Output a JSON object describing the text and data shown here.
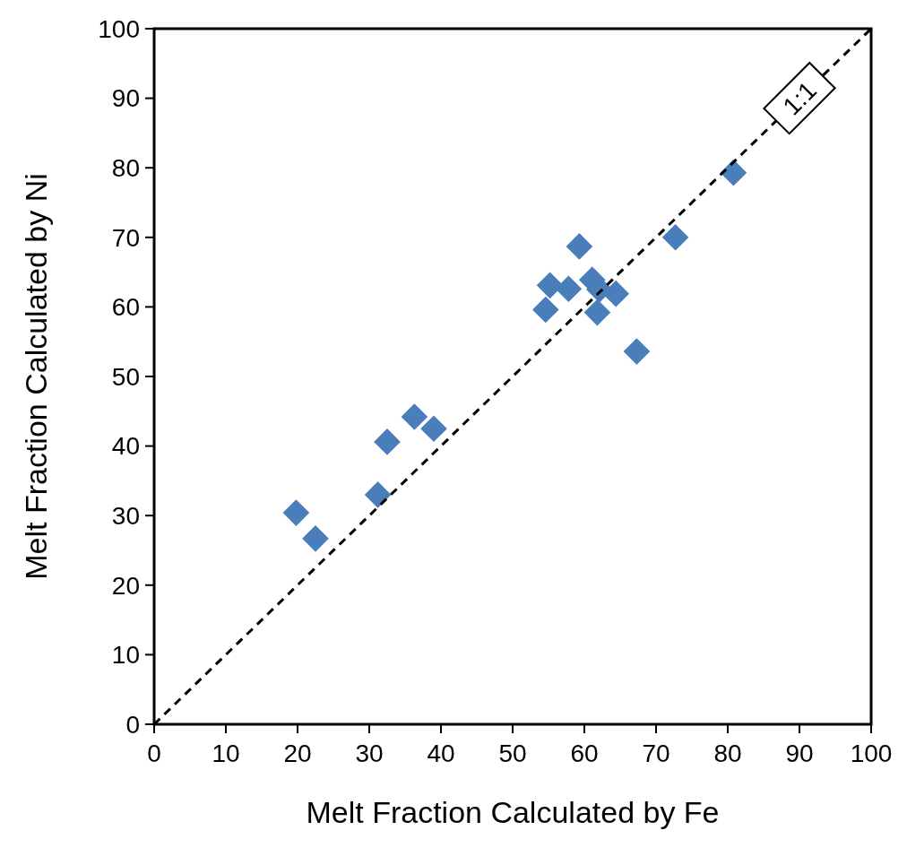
{
  "chart_data": {
    "type": "scatter",
    "xlabel": "Melt Fraction Calculated by Fe",
    "ylabel": "Melt Fraction Calculated by Ni",
    "xlim": [
      0,
      100
    ],
    "ylim": [
      0,
      100
    ],
    "xticks": [
      0,
      10,
      20,
      30,
      40,
      50,
      60,
      70,
      80,
      90,
      100
    ],
    "yticks": [
      0,
      10,
      20,
      30,
      40,
      50,
      60,
      70,
      80,
      90,
      100
    ],
    "grid": false,
    "series": [
      {
        "color": "#4a7ebb",
        "marker": "diamond",
        "x": [
          19.8,
          22.5,
          31.2,
          32.5,
          36.3,
          39.0,
          54.6,
          55.2,
          57.8,
          59.3,
          61.1,
          61.8,
          62.1,
          64.4,
          67.3,
          72.7,
          80.8
        ],
        "values": [
          30.4,
          26.7,
          33.0,
          40.6,
          44.2,
          42.5,
          59.6,
          63.1,
          62.6,
          68.7,
          63.9,
          59.2,
          62.5,
          61.9,
          53.6,
          70.0,
          79.3
        ]
      },
      {
        "type": "line",
        "color": "#000000",
        "line_style": "dashed",
        "marker": "none",
        "x": [
          0,
          100
        ],
        "values": [
          0,
          100
        ]
      }
    ],
    "annotations": [
      {
        "text": "1:1",
        "x": 90,
        "y": 90
      }
    ]
  }
}
